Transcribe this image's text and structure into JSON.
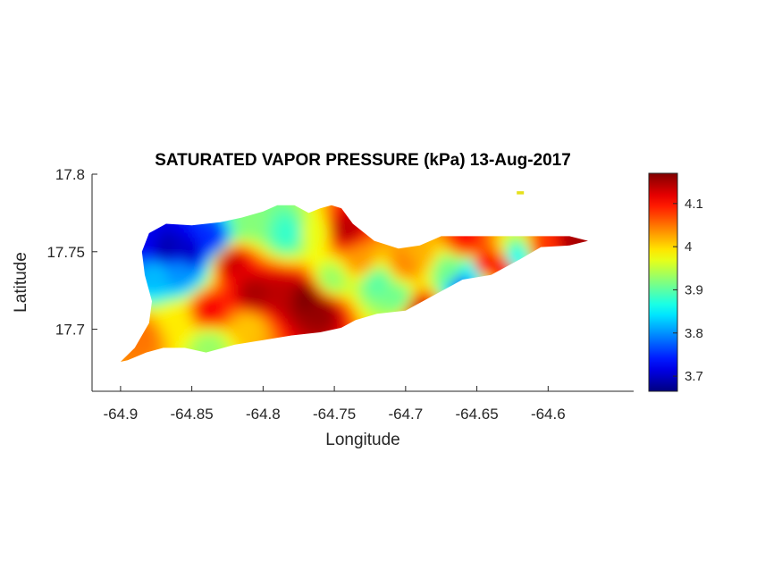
{
  "chart_data": {
    "type": "heatmap",
    "title": "SATURATED VAPOR PRESSURE (kPa) 13-Aug-2017",
    "xlabel": "Longitude",
    "ylabel": "Latitude",
    "xlim": [
      -64.92,
      -64.54
    ],
    "ylim": [
      17.66,
      17.8
    ],
    "xticks": [
      -64.9,
      -64.85,
      -64.8,
      -64.75,
      -64.7,
      -64.65,
      -64.6
    ],
    "xtick_labels": [
      "-64.9",
      "-64.85",
      "-64.8",
      "-64.75",
      "-64.7",
      "-64.65",
      "-64.6"
    ],
    "yticks": [
      17.7,
      17.75,
      17.8
    ],
    "ytick_labels": [
      "17.7",
      "17.75",
      "17.8"
    ],
    "colorbar": {
      "colormap": "jet",
      "range": [
        3.665,
        4.17
      ],
      "ticks": [
        3.7,
        3.8,
        3.9,
        4.0,
        4.1
      ],
      "tick_labels": [
        "3.7",
        "3.8",
        "3.9",
        "4",
        "4.1"
      ]
    },
    "grid": false,
    "island_outline": [
      [
        -64.9,
        17.679
      ],
      [
        -64.89,
        17.688
      ],
      [
        -64.88,
        17.704
      ],
      [
        -64.878,
        17.718
      ],
      [
        -64.883,
        17.735
      ],
      [
        -64.885,
        17.75
      ],
      [
        -64.88,
        17.762
      ],
      [
        -64.868,
        17.768
      ],
      [
        -64.85,
        17.767
      ],
      [
        -64.83,
        17.769
      ],
      [
        -64.815,
        17.772
      ],
      [
        -64.8,
        17.776
      ],
      [
        -64.79,
        17.78
      ],
      [
        -64.778,
        17.78
      ],
      [
        -64.768,
        17.775
      ],
      [
        -64.76,
        17.778
      ],
      [
        -64.752,
        17.78
      ],
      [
        -64.745,
        17.778
      ],
      [
        -64.737,
        17.768
      ],
      [
        -64.722,
        17.757
      ],
      [
        -64.705,
        17.752
      ],
      [
        -64.69,
        17.754
      ],
      [
        -64.675,
        17.76
      ],
      [
        -64.66,
        17.76
      ],
      [
        -64.64,
        17.76
      ],
      [
        -64.622,
        17.76
      ],
      [
        -64.6,
        17.76
      ],
      [
        -64.585,
        17.76
      ],
      [
        -64.572,
        17.757
      ],
      [
        -64.585,
        17.754
      ],
      [
        -64.605,
        17.753
      ],
      [
        -64.62,
        17.745
      ],
      [
        -64.64,
        17.735
      ],
      [
        -64.66,
        17.732
      ],
      [
        -64.68,
        17.722
      ],
      [
        -64.7,
        17.712
      ],
      [
        -64.72,
        17.71
      ],
      [
        -64.735,
        17.706
      ],
      [
        -64.745,
        17.701
      ],
      [
        -64.76,
        17.698
      ],
      [
        -64.78,
        17.696
      ],
      [
        -64.8,
        17.693
      ],
      [
        -64.82,
        17.69
      ],
      [
        -64.84,
        17.685
      ],
      [
        -64.855,
        17.688
      ],
      [
        -64.87,
        17.688
      ],
      [
        -64.882,
        17.685
      ],
      [
        -64.895,
        17.68
      ]
    ],
    "islet": [
      [
        -64.622,
        17.789
      ],
      [
        -64.617,
        17.789
      ],
      [
        -64.617,
        17.787
      ],
      [
        -64.622,
        17.787
      ]
    ],
    "field_points": [
      {
        "lon": -64.883,
        "lat": 17.758,
        "value": 3.72
      },
      {
        "lon": -64.868,
        "lat": 17.752,
        "value": 3.69
      },
      {
        "lon": -64.852,
        "lat": 17.75,
        "value": 3.7
      },
      {
        "lon": -64.836,
        "lat": 17.758,
        "value": 3.75
      },
      {
        "lon": -64.875,
        "lat": 17.735,
        "value": 3.82
      },
      {
        "lon": -64.858,
        "lat": 17.736,
        "value": 3.8
      },
      {
        "lon": -64.822,
        "lat": 17.743,
        "value": 4.13
      },
      {
        "lon": -64.81,
        "lat": 17.77,
        "value": 3.92
      },
      {
        "lon": -64.782,
        "lat": 17.762,
        "value": 3.88
      },
      {
        "lon": -64.764,
        "lat": 17.762,
        "value": 3.97
      },
      {
        "lon": -64.742,
        "lat": 17.764,
        "value": 4.14
      },
      {
        "lon": -64.752,
        "lat": 17.732,
        "value": 3.93
      },
      {
        "lon": -64.732,
        "lat": 17.744,
        "value": 4.03
      },
      {
        "lon": -64.806,
        "lat": 17.722,
        "value": 4.15
      },
      {
        "lon": -64.788,
        "lat": 17.722,
        "value": 4.14
      },
      {
        "lon": -64.77,
        "lat": 17.72,
        "value": 4.17
      },
      {
        "lon": -64.76,
        "lat": 17.712,
        "value": 4.16
      },
      {
        "lon": -64.838,
        "lat": 17.712,
        "value": 4.11
      },
      {
        "lon": -64.885,
        "lat": 17.695,
        "value": 4.05
      },
      {
        "lon": -64.86,
        "lat": 17.705,
        "value": 3.99
      },
      {
        "lon": -64.838,
        "lat": 17.69,
        "value": 3.93
      },
      {
        "lon": -64.81,
        "lat": 17.702,
        "value": 4.01
      },
      {
        "lon": -64.72,
        "lat": 17.73,
        "value": 3.9
      },
      {
        "lon": -64.7,
        "lat": 17.742,
        "value": 4.04
      },
      {
        "lon": -64.705,
        "lat": 17.72,
        "value": 3.91
      },
      {
        "lon": -64.69,
        "lat": 17.712,
        "value": 4.13
      },
      {
        "lon": -64.67,
        "lat": 17.738,
        "value": 3.91
      },
      {
        "lon": -64.66,
        "lat": 17.728,
        "value": 3.78
      },
      {
        "lon": -64.652,
        "lat": 17.738,
        "value": 3.86
      },
      {
        "lon": -64.645,
        "lat": 17.742,
        "value": 4.1
      },
      {
        "lon": -64.63,
        "lat": 17.74,
        "value": 4.11
      },
      {
        "lon": -64.622,
        "lat": 17.746,
        "value": 3.86
      },
      {
        "lon": -64.602,
        "lat": 17.752,
        "value": 4.08
      },
      {
        "lon": -64.582,
        "lat": 17.755,
        "value": 4.15
      },
      {
        "lon": -64.658,
        "lat": 17.757,
        "value": 4.1
      },
      {
        "lon": -64.69,
        "lat": 17.748,
        "value": 4.02
      }
    ]
  }
}
